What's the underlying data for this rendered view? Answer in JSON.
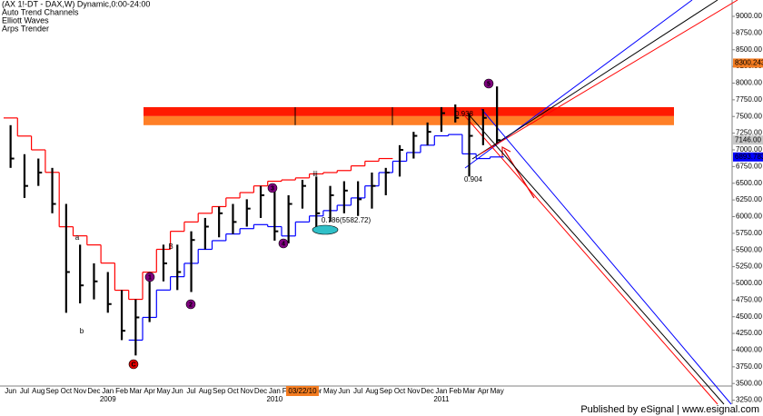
{
  "chart_data": {
    "type": "ohlc",
    "title": "(AX 1!-DT - DAX,W) Dynamic,0:00-24:00",
    "legend": [
      {
        "label": "Auto Trend Channels",
        "color": "#000000"
      },
      {
        "label": "Elliott Waves",
        "color": "#0000ff"
      },
      {
        "label": "Arps Trender",
        "color": "#000000"
      }
    ],
    "categories": [
      "Jun",
      "Jul",
      "Aug",
      "Sep",
      "Oct",
      "Nov",
      "Dec",
      "Jan",
      "Feb",
      "Mar",
      "Apr",
      "May",
      "Jun",
      "Jul",
      "Aug",
      "Sep",
      "Oct",
      "Nov",
      "Dec",
      "Jan",
      "Feb",
      "Mar",
      "Apr",
      "May",
      "Jun",
      "Jul",
      "Aug",
      "Sep",
      "Oct",
      "Nov",
      "Dec",
      "Jan",
      "Feb",
      "Mar",
      "Apr",
      "May"
    ],
    "years": [
      "2009",
      "2010",
      "2011"
    ],
    "cursor_date": "03/22/10",
    "high": [
      7370,
      6935,
      6870,
      6730,
      6190,
      5580,
      5300,
      5170,
      4900,
      4760,
      5170,
      5580,
      5580,
      5780,
      5980,
      6150,
      6190,
      6260,
      6460,
      6390,
      6320,
      6550,
      6600,
      6460,
      6530,
      6530,
      6660,
      6730,
      7070,
      7270,
      7410,
      7640,
      7680,
      7550,
      7610,
      7950
    ],
    "low": [
      6730,
      6280,
      6460,
      6050,
      4560,
      4700,
      4760,
      4560,
      4150,
      3920,
      4420,
      5030,
      4900,
      4870,
      5510,
      5690,
      5740,
      5850,
      5980,
      5640,
      5600,
      6120,
      5850,
      5920,
      6050,
      6010,
      6120,
      6320,
      6600,
      6870,
      7070,
      7270,
      7410,
      6600,
      7070,
      7100
    ],
    "close": [
      6870,
      6460,
      6660,
      6190,
      5170,
      4970,
      5030,
      4690,
      4290,
      4490,
      5100,
      5300,
      5170,
      5650,
      5850,
      6050,
      5920,
      6120,
      6320,
      5780,
      6190,
      6460,
      6050,
      6320,
      6390,
      6260,
      6460,
      6660,
      7000,
      7210,
      7270,
      7550,
      7480,
      7210,
      7480,
      7146
    ],
    "color": "#000000",
    "series": [
      {
        "color": "#ff0000",
        "values": [
          7478,
          7207,
          7000,
          6663,
          5848,
          5712,
          5576,
          5304,
          4897,
          4761,
          5168,
          5510,
          5780,
          5920,
          6050,
          6150,
          6280,
          6360,
          6460,
          6530,
          6550,
          6580,
          6640,
          6660,
          6690,
          6760,
          6830,
          6870,
          null,
          null,
          null,
          null,
          null,
          null,
          null,
          null
        ]
      },
      {
        "color": "#0000ff",
        "values": [
          null,
          null,
          null,
          null,
          null,
          null,
          null,
          null,
          null,
          4150,
          4490,
          4900,
          5100,
          5300,
          5510,
          5640,
          5740,
          5820,
          5880,
          5850,
          5710,
          5920,
          6010,
          6090,
          6170,
          6280,
          6460,
          6660,
          6830,
          6960,
          7070,
          7210,
          7230,
          6940,
          6870,
          6893.7832
        ]
      }
    ],
    "zones": [
      {
        "from": 7505,
        "to": 7640,
        "color": "#ff1a00"
      },
      {
        "from": 7370,
        "to": 7505,
        "color": "#ff7f27"
      }
    ],
    "price_flags": [
      {
        "value": 8300.2437,
        "label": "8300.2437",
        "color": "#f47c20",
        "text_color": "#ffffff"
      },
      {
        "value": 7146,
        "label": "7146.00",
        "color": "#c8c8c8",
        "text_color": "#000000"
      },
      {
        "value": 6893.7832,
        "label": "6893.7832",
        "color": "#0000ff",
        "text_color": "#ffffff"
      }
    ],
    "annotations": [
      {
        "text": "C",
        "color": "#e00000",
        "circled": true
      },
      {
        "text": "1",
        "color": "#800080",
        "circled": true
      },
      {
        "text": "2",
        "color": "#800080",
        "circled": true
      },
      {
        "text": "3",
        "color": "#800080",
        "circled": true
      },
      {
        "text": "4",
        "color": "#800080",
        "circled": true
      },
      {
        "text": "5",
        "color": "#800080",
        "circled": true
      },
      {
        "text": "0.938",
        "color": "#0000ff",
        "circled": false
      },
      {
        "text": "0.904",
        "color": "#e00000",
        "circled": false
      },
      {
        "text": "0.786(5582.72)",
        "color": "#909090",
        "circled": false
      },
      {
        "text": "iii",
        "color": "#0000ff",
        "circled": false
      },
      {
        "text": "a",
        "color": "#e00000",
        "circled": false
      },
      {
        "text": "b",
        "color": "#e00000",
        "circled": false
      },
      {
        "text": "B",
        "color": "#e00000",
        "circled": false
      }
    ],
    "ylim": [
      3190,
      9245
    ],
    "yticks": [
      {
        "value": 3250,
        "label": "3250.00"
      },
      {
        "value": 3500,
        "label": "3500.00"
      },
      {
        "value": 3750,
        "label": "3750.00"
      },
      {
        "value": 4000,
        "label": "4000.00"
      },
      {
        "value": 4250,
        "label": "4250.00"
      },
      {
        "value": 4500,
        "label": "4500.00"
      },
      {
        "value": 4750,
        "label": "4750.00"
      },
      {
        "value": 5000,
        "label": "5000.00"
      },
      {
        "value": 5250,
        "label": "5250.00"
      },
      {
        "value": 5500,
        "label": "5500.00"
      },
      {
        "value": 5750,
        "label": "5750.00"
      },
      {
        "value": 6000,
        "label": "6000.00"
      },
      {
        "value": 6250,
        "label": "6250.00"
      },
      {
        "value": 6500,
        "label": "6500.00"
      },
      {
        "value": 6750,
        "label": "6750.00"
      },
      {
        "value": 7000,
        "label": "7000.00"
      },
      {
        "value": 7250,
        "label": "7250.00"
      },
      {
        "value": 7500,
        "label": "7500.00"
      },
      {
        "value": 7750,
        "label": "7750.00"
      },
      {
        "value": 8000,
        "label": "8000.00"
      },
      {
        "value": 8250,
        "label": "8250.00"
      },
      {
        "value": 8500,
        "label": "8500.00"
      },
      {
        "value": 8750,
        "label": "8750.00"
      },
      {
        "value": 9000,
        "label": "9000.00"
      }
    ],
    "grid": false,
    "footer": "Published by eSignal | www.esignal.com"
  }
}
